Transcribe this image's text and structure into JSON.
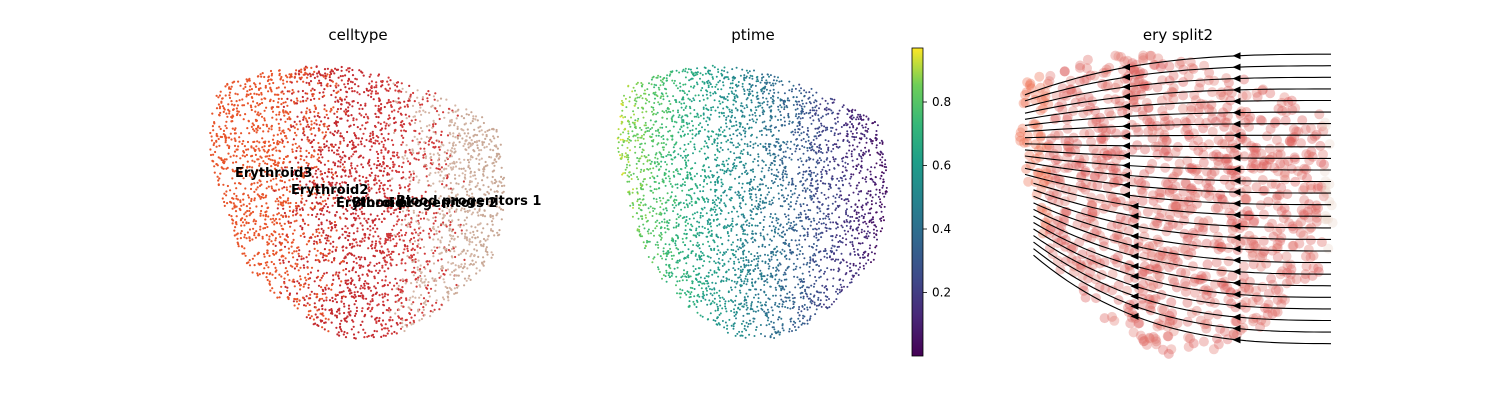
{
  "chart_data": [
    {
      "type": "scatter",
      "title": "celltype",
      "xlabel": "",
      "ylabel": "",
      "axes_visible": false,
      "annotations": [
        {
          "text": "Erythroid3"
        },
        {
          "text": "Erythroid2"
        },
        {
          "text": "Erythroid1"
        },
        {
          "text": "Blood progenitors 2"
        },
        {
          "text": "Blood progenitors 1"
        }
      ],
      "groups": [
        {
          "color": "#e8542a"
        },
        {
          "color": "#c42a2f"
        },
        {
          "color": "#d13a3a"
        },
        {
          "color": "#d4b6a6"
        },
        {
          "color": "#c8a896"
        }
      ]
    },
    {
      "type": "scatter",
      "title": "ptime",
      "axes_visible": false,
      "colormap": "viridis",
      "colorbar": {
        "range": [
          0.0,
          0.97
        ],
        "ticks": [
          0.2,
          0.4,
          0.6,
          0.8
        ],
        "tick_labels": [
          "0.2",
          "0.4",
          "0.6",
          "0.8"
        ]
      },
      "gradient_direction": "high at left, low at right"
    },
    {
      "type": "scatter",
      "title": "ery split2",
      "axes_visible": false,
      "overlay": "streamlines with arrows",
      "arrow_direction": "right to left",
      "colors": {
        "left": "#ee6a4a",
        "middle": "#d94c4c",
        "right": "#ead8cc"
      }
    }
  ],
  "colors": {
    "text": "#000000",
    "streamline": "#000000",
    "colorbar_border": "#000000"
  }
}
